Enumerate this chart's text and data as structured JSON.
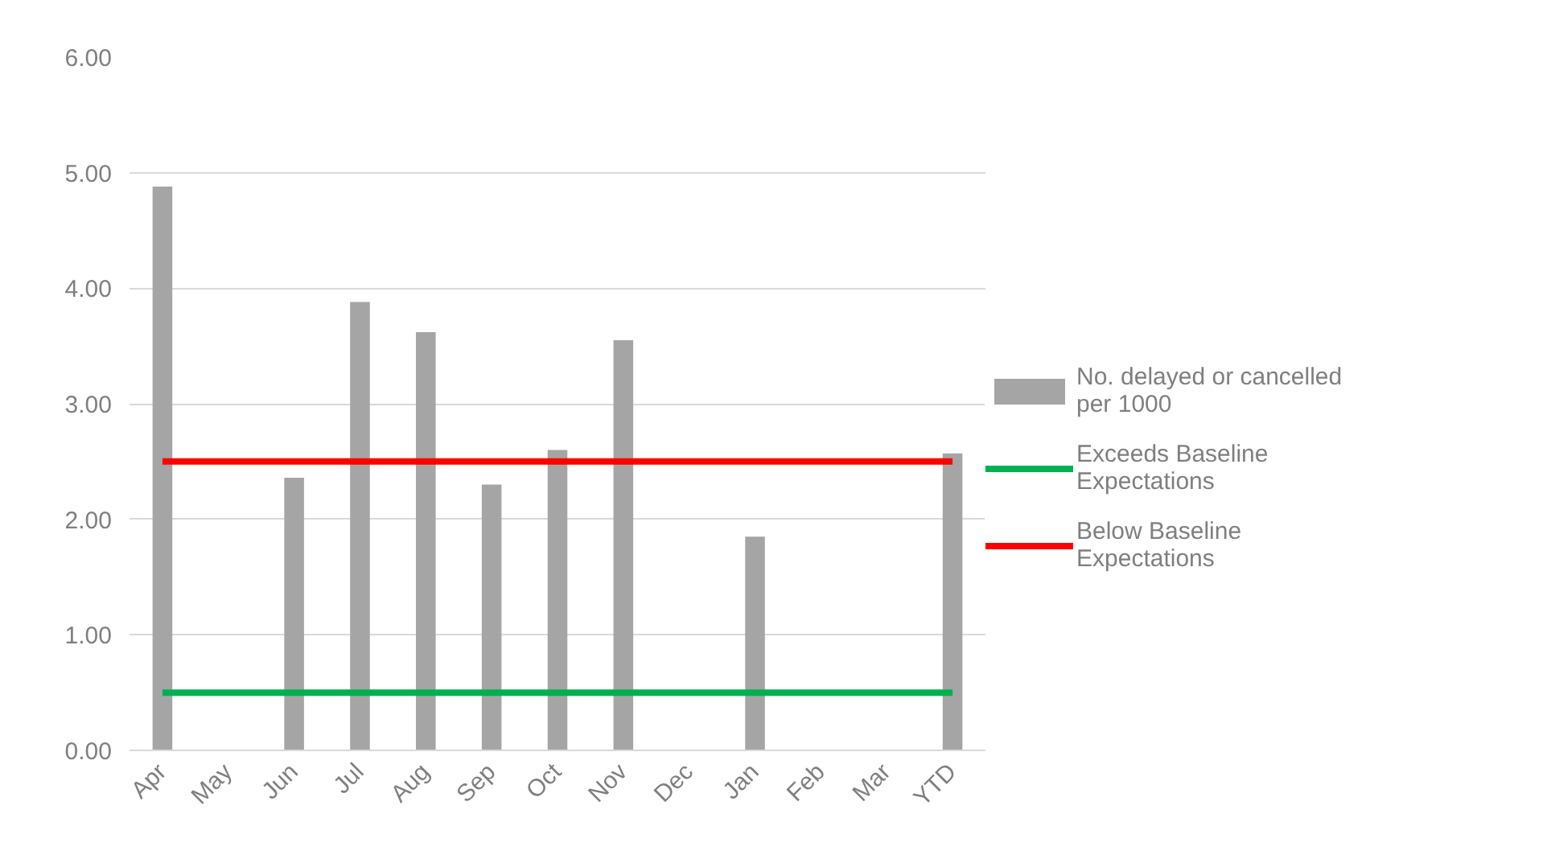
{
  "chart_data": {
    "type": "bar",
    "categories": [
      "Apr",
      "May",
      "Jun",
      "Jul",
      "Aug",
      "Sep",
      "Oct",
      "Nov",
      "Dec",
      "Jan",
      "Feb",
      "Mar",
      "YTD"
    ],
    "series": [
      {
        "name": "No. delayed or cancelled per 1000",
        "color": "#a5a5a5",
        "values": [
          4.88,
          null,
          2.36,
          3.88,
          3.62,
          2.3,
          2.6,
          3.55,
          null,
          1.85,
          null,
          null,
          2.57
        ]
      },
      {
        "name": "Exceeds Baseline Expectations",
        "type": "line",
        "color": "#00b050",
        "values": [
          0.5,
          0.5,
          0.5,
          0.5,
          0.5,
          0.5,
          0.5,
          0.5,
          0.5,
          0.5,
          0.5,
          0.5,
          0.5
        ]
      },
      {
        "name": "Below Baseline Expectations",
        "type": "line",
        "color": "#ff0000",
        "values": [
          2.5,
          2.5,
          2.5,
          2.5,
          2.5,
          2.5,
          2.5,
          2.5,
          2.5,
          2.5,
          2.5,
          2.5,
          2.5
        ]
      }
    ],
    "ylim": [
      0,
      6
    ],
    "yticks": [
      {
        "value": 0,
        "label": "0.00"
      },
      {
        "value": 1,
        "label": "1.00"
      },
      {
        "value": 2,
        "label": "2.00"
      },
      {
        "value": 3,
        "label": "3.00"
      },
      {
        "value": 4,
        "label": "4.00"
      },
      {
        "value": 5,
        "label": "5.00"
      },
      {
        "value": 6,
        "label": "6.00"
      }
    ],
    "grid": "y",
    "legend": "right"
  }
}
